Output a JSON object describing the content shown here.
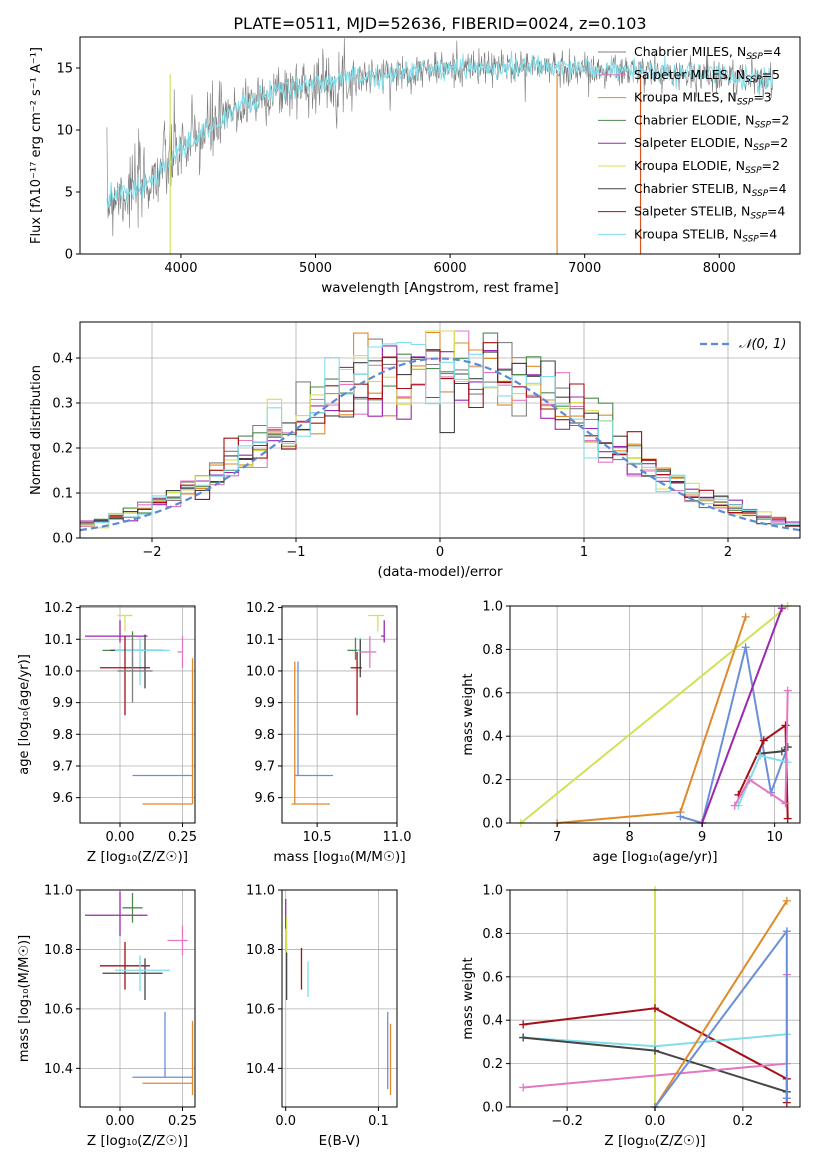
{
  "figure_title": "PLATE=0511, MJD=52636, FIBERID=0024, z=0.103",
  "colors": {
    "Chabrier MILES": "#808080",
    "Salpeter MILES": "#e377c2",
    "Kroupa MILES": "#e08a2a",
    "Chabrier ELODIE": "#4e8a4e",
    "Salpeter ELODIE": "#9c27b0",
    "Kroupa ELODIE": "#d4e157",
    "Chabrier STELIB": "#454545",
    "Salpeter STELIB": "#a50f15",
    "Kroupa STELIB": "#80deea",
    "Kroupa MILES (weights)": "#6a8fd8"
  },
  "chart_data": [
    {
      "id": "spectrum",
      "type": "line",
      "title": "",
      "xlabel": "wavelength [Angstrom, rest frame]",
      "ylabel": "Flux [fλ10⁻¹⁷ erg cm⁻² s⁻¹ A⁻¹]",
      "xlim": [
        3250,
        8600
      ],
      "ylim": [
        0,
        17.5
      ],
      "xticks": [
        "4000",
        "5000",
        "6000",
        "7000",
        "8000"
      ],
      "yticks": [
        "0",
        "5",
        "10",
        "15"
      ],
      "grid": false,
      "legend": "right",
      "legend_entries": [
        "Chabrier MILES, N_SSP=4",
        "Salpeter MILES, N_SSP=5",
        "Kroupa MILES, N_SSP=3",
        "Chabrier ELODIE, N_SSP=2",
        "Salpeter ELODIE, N_SSP=2",
        "Kroupa ELODIE, N_SSP=2",
        "Chabrier STELIB, N_SSP=4",
        "Salpeter STELIB, N_SSP=4",
        "Kroupa STELIB, N_SSP=4"
      ],
      "continuum_x": [
        3450,
        3500,
        3600,
        3700,
        3800,
        3900,
        4000,
        4100,
        4200,
        4300,
        4400,
        4500,
        4600,
        4800,
        5000,
        5200,
        5400,
        5600,
        5800,
        6000,
        6200,
        6400,
        6600,
        6800,
        7000,
        7200,
        7400,
        7600,
        7800,
        8000,
        8200,
        8400
      ],
      "continuum_y": [
        4.0,
        4.8,
        5.0,
        5.5,
        6.2,
        7.5,
        8.5,
        9.0,
        10.0,
        10.8,
        11.5,
        12.3,
        12.7,
        13.3,
        13.8,
        14.0,
        14.4,
        14.6,
        14.8,
        15.0,
        15.0,
        15.1,
        15.1,
        15.0,
        14.9,
        14.8,
        14.7,
        14.6,
        14.5,
        14.4,
        14.2,
        14.0
      ]
    },
    {
      "id": "residuals",
      "type": "line",
      "title": "",
      "xlabel": "(data-model)/error",
      "ylabel": "Normed distribution",
      "xlim": [
        -2.5,
        2.5
      ],
      "ylim": [
        0,
        0.48
      ],
      "xticks": [
        "−2",
        "−1",
        "0",
        "1",
        "2"
      ],
      "yticks": [
        "0.0",
        "0.1",
        "0.2",
        "0.3",
        "0.4"
      ],
      "grid": true,
      "legend": "top-right",
      "legend_entries": [
        "𝒩(0, 1)"
      ],
      "bin_width": 0.1
    },
    {
      "id": "z_age",
      "type": "scatter",
      "xlabel": "Z [log₁₀(Z/Z☉)]",
      "ylabel": "age  [log₁₀(age/yr)]",
      "xlim": [
        -0.16,
        0.3
      ],
      "ylim": [
        9.52,
        10.205
      ],
      "xticks": [
        "0.00",
        "0.25"
      ],
      "yticks": [
        "9.6",
        "9.7",
        "9.8",
        "9.9",
        "10.0",
        "10.1",
        "10.2"
      ],
      "grid": true,
      "series": [
        {
          "name": "Kroupa ELODIE",
          "x": 0.02,
          "y": 10.175,
          "xerr": [
            0.03,
            0.03
          ],
          "yerr": [
            0.05,
            0.0
          ]
        },
        {
          "name": "Salpeter ELODIE",
          "x": 0.0,
          "y": 10.11,
          "xerr": [
            0.14,
            0.11
          ],
          "yerr": [
            0.02,
            0.05
          ]
        },
        {
          "name": "Chabrier ELODIE",
          "x": 0.05,
          "y": 10.065,
          "xerr": [
            0.12,
            0.12
          ],
          "yerr": [
            0.06,
            0.06
          ]
        },
        {
          "name": "Chabrier STELIB",
          "x": 0.1,
          "y": 10.065,
          "xerr": [
            0.14,
            0.07
          ],
          "yerr": [
            0.12,
            0.05
          ]
        },
        {
          "name": "Kroupa STELIB",
          "x": 0.08,
          "y": 10.065,
          "xerr": [
            0.1,
            0.12
          ],
          "yerr": [
            0.11,
            0.04
          ]
        },
        {
          "name": "Salpeter MILES",
          "x": 0.25,
          "y": 10.06,
          "xerr": [
            0.02,
            0.0
          ],
          "yerr": [
            0.05,
            0.05
          ]
        },
        {
          "name": "Salpeter STELIB",
          "x": 0.02,
          "y": 10.01,
          "xerr": [
            0.1,
            0.1
          ],
          "yerr": [
            0.15,
            0.1
          ]
        },
        {
          "name": "Chabrier MILES",
          "x": 0.05,
          "y": 10.0,
          "xerr": [
            0.06,
            0.08
          ],
          "yerr": [
            0.1,
            0.1
          ]
        },
        {
          "name": "Kroupa MILES (weights)",
          "x": 0.18,
          "y": 9.67,
          "xerr": [
            0.13,
            0.11
          ],
          "yerr": [
            0.0,
            0.0
          ]
        },
        {
          "name": "Kroupa MILES",
          "x": 0.29,
          "y": 9.58,
          "xerr": [
            0.2,
            0.0
          ],
          "yerr": [
            0.0,
            0.46
          ]
        }
      ]
    },
    {
      "id": "mass_age",
      "type": "scatter",
      "xlabel": "mass [log₁₀(M/M☉)]",
      "ylabel": "",
      "xlim": [
        10.28,
        11.0
      ],
      "ylim": [
        9.52,
        10.205
      ],
      "xticks": [
        "10.5",
        "11.0"
      ],
      "yticks": [
        "9.6",
        "9.7",
        "9.8",
        "9.9",
        "10.0",
        "10.1",
        "10.2"
      ],
      "grid": true,
      "series": [
        {
          "name": "Kroupa ELODIE",
          "x": 10.88,
          "y": 10.175,
          "xerr": [
            0.06,
            0.04
          ],
          "yerr": [
            0.05,
            0.0
          ]
        },
        {
          "name": "Salpeter ELODIE",
          "x": 10.92,
          "y": 10.11,
          "xerr": [
            0.02,
            0.0
          ],
          "yerr": [
            0.02,
            0.05
          ]
        },
        {
          "name": "Chabrier ELODIE",
          "x": 10.74,
          "y": 10.065,
          "xerr": [
            0.05,
            0.03
          ],
          "yerr": [
            0.03,
            0.04
          ]
        },
        {
          "name": "Kroupa STELIB",
          "x": 10.77,
          "y": 10.065,
          "xerr": [
            0.02,
            0.0
          ],
          "yerr": [
            0.05,
            0.04
          ]
        },
        {
          "name": "Chabrier STELIB",
          "x": 10.77,
          "y": 10.03,
          "xerr": [
            0.0,
            0.0
          ],
          "yerr": [
            0.05,
            0.07
          ]
        },
        {
          "name": "Salpeter MILES",
          "x": 10.83,
          "y": 10.06,
          "xerr": [
            0.06,
            0.04
          ],
          "yerr": [
            0.05,
            0.05
          ]
        },
        {
          "name": "Salpeter STELIB",
          "x": 10.75,
          "y": 10.01,
          "xerr": [
            0.04,
            0.03
          ],
          "yerr": [
            0.15,
            0.05
          ]
        },
        {
          "name": "Kroupa MILES (weights)",
          "x": 10.38,
          "y": 9.67,
          "xerr": [
            0.02,
            0.22
          ],
          "yerr": [
            0.0,
            0.36
          ]
        },
        {
          "name": "Kroupa MILES",
          "x": 10.36,
          "y": 9.58,
          "xerr": [
            0.02,
            0.22
          ],
          "yerr": [
            0.0,
            0.45
          ]
        }
      ]
    },
    {
      "id": "age_weight",
      "type": "line",
      "xlabel": "age  [log₁₀(age/yr)]",
      "ylabel": "mass weight",
      "xlim": [
        6.35,
        10.35
      ],
      "ylim": [
        0,
        1.0
      ],
      "xticks": [
        "7",
        "8",
        "9",
        "10"
      ],
      "yticks": [
        "0.0",
        "0.2",
        "0.4",
        "0.6",
        "0.8",
        "1.0"
      ],
      "grid": true,
      "series": [
        {
          "name": "Kroupa ELODIE",
          "x": [
            6.5,
            10.18
          ],
          "y": [
            0.0,
            1.0
          ]
        },
        {
          "name": "Kroupa MILES",
          "x": [
            7.0,
            8.7,
            9.6
          ],
          "y": [
            0.0,
            0.05,
            0.95
          ]
        },
        {
          "name": "Kroupa MILES (weights)",
          "x": [
            8.7,
            9.0,
            9.6,
            9.95,
            10.18
          ],
          "y": [
            0.03,
            0.0,
            0.81,
            0.14,
            0.35
          ]
        },
        {
          "name": "Salpeter ELODIE",
          "x": [
            9.0,
            10.1
          ],
          "y": [
            0.0,
            0.99
          ]
        },
        {
          "name": "Chabrier STELIB",
          "x": [
            9.8,
            10.1,
            10.18
          ],
          "y": [
            0.32,
            0.33,
            0.35
          ]
        },
        {
          "name": "Salpeter STELIB",
          "x": [
            9.5,
            9.85,
            10.15,
            10.18
          ],
          "y": [
            0.13,
            0.38,
            0.45,
            0.02
          ]
        },
        {
          "name": "Kroupa STELIB",
          "x": [
            9.5,
            9.8,
            10.18
          ],
          "y": [
            0.08,
            0.31,
            0.28
          ]
        },
        {
          "name": "Salpeter MILES",
          "x": [
            9.45,
            9.65,
            10.15,
            10.18
          ],
          "y": [
            0.08,
            0.2,
            0.09,
            0.61
          ]
        }
      ]
    },
    {
      "id": "z_mass",
      "type": "scatter",
      "xlabel": "Z [log₁₀(Z/Z☉)]",
      "ylabel": "mass [log₁₀(M/M☉)]",
      "xlim": [
        -0.16,
        0.3
      ],
      "ylim": [
        10.27,
        11.0
      ],
      "xticks": [
        "0.00",
        "0.25"
      ],
      "yticks": [
        "10.4",
        "10.6",
        "10.8",
        "11.0"
      ],
      "grid": true,
      "series": [
        {
          "name": "Salpeter ELODIE",
          "x": 0.0,
          "y": 10.915,
          "xerr": [
            0.14,
            0.11
          ],
          "yerr": [
            0.07,
            0.08
          ]
        },
        {
          "name": "Chabrier ELODIE",
          "x": 0.05,
          "y": 10.94,
          "xerr": [
            0.04,
            0.04
          ],
          "yerr": [
            0.05,
            0.05
          ]
        },
        {
          "name": "Salpeter MILES",
          "x": 0.25,
          "y": 10.83,
          "xerr": [
            0.06,
            0.02
          ],
          "yerr": [
            0.05,
            0.05
          ]
        },
        {
          "name": "Salpeter STELIB",
          "x": 0.02,
          "y": 10.745,
          "xerr": [
            0.1,
            0.1
          ],
          "yerr": [
            0.08,
            0.08
          ]
        },
        {
          "name": "Chabrier STELIB",
          "x": 0.1,
          "y": 10.72,
          "xerr": [
            0.17,
            0.07
          ],
          "yerr": [
            0.09,
            0.05
          ]
        },
        {
          "name": "Kroupa STELIB",
          "x": 0.08,
          "y": 10.73,
          "xerr": [
            0.1,
            0.12
          ],
          "yerr": [
            0.07,
            0.05
          ]
        },
        {
          "name": "Kroupa MILES (weights)",
          "x": 0.18,
          "y": 10.37,
          "xerr": [
            0.13,
            0.11
          ],
          "yerr": [
            0.0,
            0.22
          ]
        },
        {
          "name": "Kroupa MILES",
          "x": 0.29,
          "y": 10.35,
          "xerr": [
            0.2,
            0.0
          ],
          "yerr": [
            0.04,
            0.21
          ]
        }
      ]
    },
    {
      "id": "ebv_mass",
      "type": "scatter",
      "xlabel": "E(B-V)",
      "ylabel": "",
      "xlim": [
        -0.004,
        0.12
      ],
      "ylim": [
        10.27,
        11.0
      ],
      "xticks": [
        "0.0",
        "0.1"
      ],
      "yticks": [
        "10.4",
        "10.6",
        "10.8",
        "11.0"
      ],
      "grid": true,
      "series": [
        {
          "name": "Salpeter ELODIE",
          "x": 0.0,
          "y": 10.91,
          "yerr": [
            0.04,
            0.06
          ]
        },
        {
          "name": "Kroupa ELODIE",
          "x": 0.001,
          "y": 10.85,
          "yerr": [
            0.06,
            0.06
          ]
        },
        {
          "name": "Chabrier STELIB",
          "x": 0.001,
          "y": 10.73,
          "yerr": [
            0.1,
            0.06
          ]
        },
        {
          "name": "Salpeter STELIB",
          "x": 0.017,
          "y": 10.735,
          "yerr": [
            0.07,
            0.07
          ]
        },
        {
          "name": "Kroupa STELIB",
          "x": 0.024,
          "y": 10.7,
          "yerr": [
            0.06,
            0.06
          ]
        },
        {
          "name": "Kroupa MILES (weights)",
          "x": 0.11,
          "y": 10.45,
          "yerr": [
            0.12,
            0.14
          ]
        },
        {
          "name": "Kroupa MILES",
          "x": 0.113,
          "y": 10.43,
          "yerr": [
            0.12,
            0.12
          ]
        }
      ]
    },
    {
      "id": "z_weight",
      "type": "line",
      "xlabel": "Z [log₁₀(Z/Z☉)]",
      "ylabel": "mass weight",
      "xlim": [
        -0.33,
        0.33
      ],
      "ylim": [
        0,
        1.0
      ],
      "xticks": [
        "−0.2",
        "0.0",
        "0.2"
      ],
      "yticks": [
        "0.0",
        "0.2",
        "0.4",
        "0.6",
        "0.8",
        "1.0"
      ],
      "grid": true,
      "series": [
        {
          "name": "Kroupa ELODIE",
          "x": [
            0.0,
            0.0
          ],
          "y": [
            0.0,
            1.0
          ]
        },
        {
          "name": "Salpeter STELIB",
          "x": [
            -0.3,
            0.0,
            0.3,
            0.3
          ],
          "y": [
            0.38,
            0.455,
            0.13,
            0.02
          ]
        },
        {
          "name": "Kroupa STELIB",
          "x": [
            -0.3,
            0.0,
            0.3
          ],
          "y": [
            0.32,
            0.28,
            0.335
          ]
        },
        {
          "name": "Chabrier STELIB",
          "x": [
            -0.3,
            0.0,
            0.3
          ],
          "y": [
            0.32,
            0.26,
            0.07
          ]
        },
        {
          "name": "Salpeter MILES",
          "x": [
            -0.3,
            0.3,
            0.3
          ],
          "y": [
            0.09,
            0.2,
            0.61
          ]
        },
        {
          "name": "Kroupa MILES",
          "x": [
            0.0,
            0.3
          ],
          "y": [
            0.0,
            0.95
          ]
        },
        {
          "name": "Kroupa MILES (weights)",
          "x": [
            0.0,
            0.3,
            0.3
          ],
          "y": [
            0.0,
            0.81,
            0.04
          ]
        }
      ]
    }
  ]
}
